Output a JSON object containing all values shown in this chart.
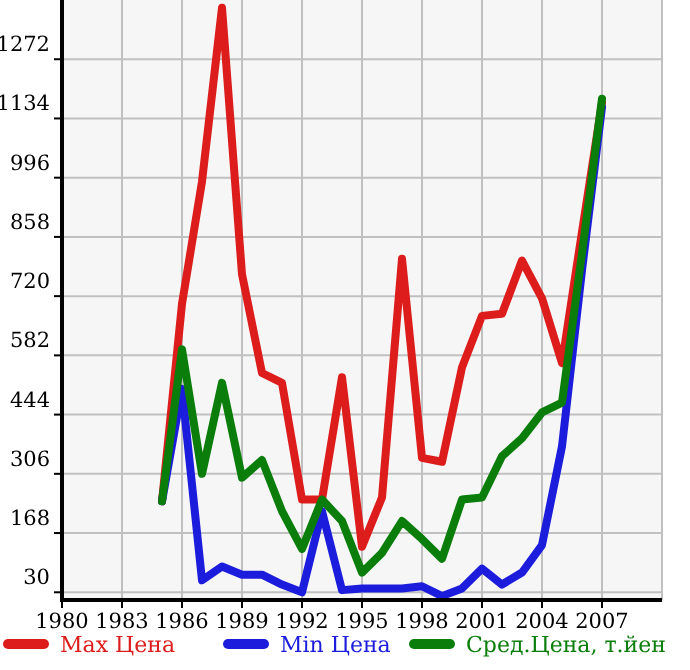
{
  "chart_data": {
    "type": "line",
    "x": [
      1985,
      1986,
      1987,
      1988,
      1989,
      1990,
      1991,
      1992,
      1993,
      1994,
      1995,
      1996,
      1997,
      1998,
      1999,
      2000,
      2001,
      2002,
      2003,
      2004,
      2005,
      2006,
      2007
    ],
    "series": [
      {
        "name": "Max Цена",
        "color": "#dd1c1c",
        "values": [
          242,
          702,
          987,
          1392,
          771,
          541,
          518,
          246,
          246,
          531,
          136,
          251,
          807,
          343,
          334,
          554,
          674,
          679,
          803,
          715,
          564,
          870,
          1171
        ]
      },
      {
        "name": "Min Цена",
        "color": "#1c1cdd",
        "values": [
          242,
          504,
          58,
          90,
          71,
          71,
          48,
          30,
          219,
          35,
          39,
          39,
          39,
          44,
          21,
          39,
          85,
          48,
          76,
          140,
          370,
          780,
          1160
        ]
      },
      {
        "name": "Сред.Цена, т.йен",
        "color": "#0a7d0a",
        "values": [
          242,
          596,
          306,
          518,
          297,
          338,
          219,
          131,
          246,
          196,
          76,
          122,
          196,
          154,
          108,
          246,
          251,
          347,
          389,
          449,
          472,
          820,
          1180
        ]
      }
    ],
    "xlim": [
      1980,
      2010
    ],
    "xticks": [
      1980,
      1983,
      1986,
      1989,
      1992,
      1995,
      1998,
      2001,
      2004,
      2007
    ],
    "ylim": [
      12,
      1410
    ],
    "yticks": [
      30,
      168,
      306,
      444,
      582,
      720,
      858,
      996,
      1134,
      1272
    ],
    "grid": true,
    "legend": "bottom",
    "marker": "none",
    "line_style": "solid"
  }
}
